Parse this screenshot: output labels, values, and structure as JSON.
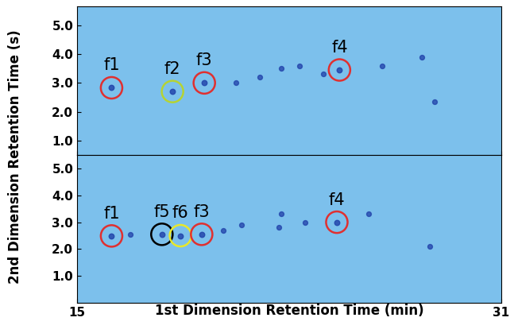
{
  "chart_data": {
    "type": "scatter",
    "xlabel": "1st Dimension Retention Time (min)",
    "ylabel": "2nd Dimension Retention Time (s)",
    "xlim": [
      15,
      31
    ],
    "xticks": [
      15,
      31
    ],
    "panels": [
      {
        "ylim": [
          0.5,
          5.65
        ],
        "yticks": [
          {
            "value": 1,
            "label": "1.0"
          },
          {
            "value": 2,
            "label": "2.0"
          },
          {
            "value": 3,
            "label": "3.0"
          },
          {
            "value": 4,
            "label": "4.0"
          },
          {
            "value": 5,
            "label": "5.0"
          }
        ],
        "tick_labels": "y",
        "peaks": {
          "x": [
            21.0,
            21.9,
            22.7,
            23.4,
            24.3,
            26.5,
            28.0,
            28.5
          ],
          "y": [
            3.0,
            3.2,
            3.5,
            3.6,
            3.3,
            3.6,
            3.9,
            2.35
          ]
        },
        "features": [
          {
            "name": "f1",
            "x": 16.3,
            "y": 2.83,
            "color": "#e03030"
          },
          {
            "name": "f2",
            "x": 18.6,
            "y": 2.7,
            "color": "#b5d334"
          },
          {
            "name": "f3",
            "x": 19.8,
            "y": 3.0,
            "color": "#e03030"
          },
          {
            "name": "f4",
            "x": 24.9,
            "y": 3.45,
            "color": "#e03030"
          }
        ]
      },
      {
        "ylim": [
          0.0,
          5.5
        ],
        "yticks": [
          {
            "value": 1,
            "label": "1.0"
          },
          {
            "value": 2,
            "label": "2.0"
          },
          {
            "value": 3,
            "label": "3.0"
          },
          {
            "value": 4,
            "label": "4.0"
          },
          {
            "value": 5,
            "label": "5.0"
          }
        ],
        "peaks": {
          "x": [
            17.0,
            20.5,
            21.2,
            22.6,
            22.7,
            23.6,
            26.0,
            28.3
          ],
          "y": [
            2.55,
            2.7,
            2.9,
            2.8,
            3.3,
            3.0,
            3.3,
            2.1
          ]
        },
        "features": [
          {
            "name": "f1",
            "x": 16.3,
            "y": 2.49,
            "color": "#e03030"
          },
          {
            "name": "f5",
            "x": 18.2,
            "y": 2.55,
            "color": "#000000"
          },
          {
            "name": "f6",
            "x": 18.9,
            "y": 2.5,
            "color": "#e8e82a"
          },
          {
            "name": "f3",
            "x": 19.7,
            "y": 2.55,
            "color": "#e03030"
          },
          {
            "name": "f4",
            "x": 24.8,
            "y": 3.0,
            "color": "#e03030"
          }
        ]
      }
    ]
  }
}
